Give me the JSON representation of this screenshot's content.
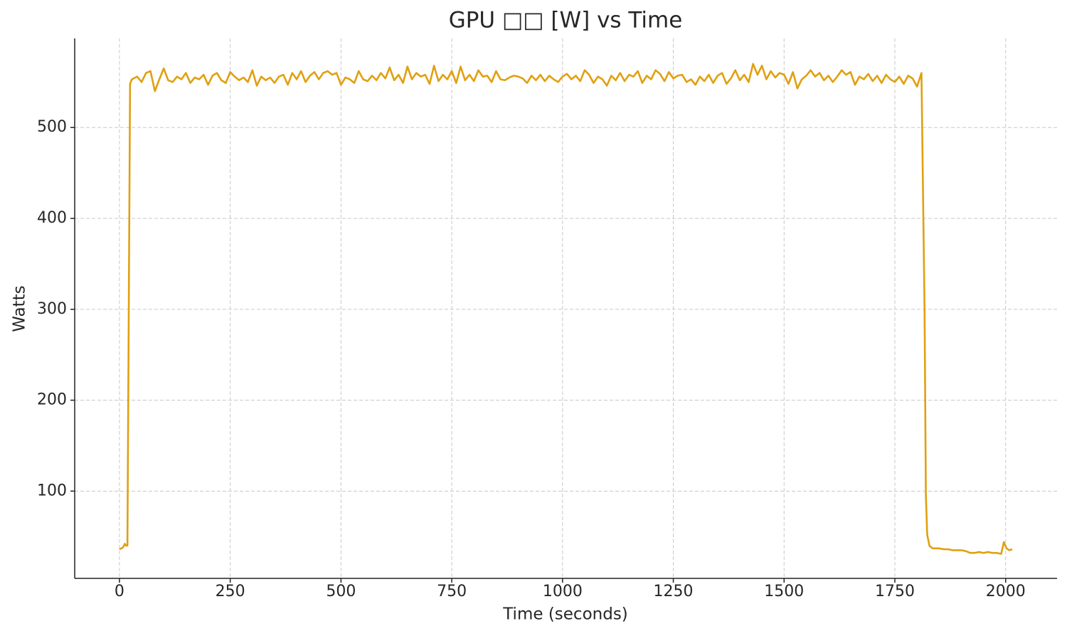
{
  "chart_data": {
    "type": "line",
    "title": "GPU □□ [W] vs Time",
    "xlabel": "Time (seconds)",
    "ylabel": "Watts",
    "xlim": [
      -101,
      2116
    ],
    "ylim": [
      4,
      598
    ],
    "xticks": [
      0,
      250,
      500,
      750,
      1000,
      1250,
      1500,
      1750,
      2000
    ],
    "yticks": [
      100,
      200,
      300,
      400,
      500
    ],
    "grid": true,
    "series": [
      {
        "color": "#e0a010",
        "x": [
          0,
          8,
          12,
          15,
          18,
          24,
          28,
          40,
          50,
          60,
          70,
          80,
          90,
          100,
          110,
          120,
          130,
          140,
          150,
          160,
          170,
          180,
          190,
          200,
          210,
          220,
          230,
          240,
          250,
          260,
          270,
          280,
          290,
          300,
          310,
          320,
          330,
          340,
          350,
          360,
          370,
          380,
          390,
          400,
          410,
          420,
          430,
          440,
          450,
          460,
          470,
          480,
          490,
          500,
          510,
          520,
          530,
          540,
          550,
          560,
          570,
          580,
          590,
          600,
          610,
          620,
          630,
          640,
          650,
          660,
          670,
          680,
          690,
          700,
          710,
          720,
          730,
          740,
          750,
          760,
          770,
          780,
          790,
          800,
          810,
          820,
          830,
          840,
          850,
          860,
          870,
          880,
          890,
          900,
          910,
          920,
          930,
          940,
          950,
          960,
          970,
          980,
          990,
          1000,
          1010,
          1020,
          1030,
          1040,
          1050,
          1060,
          1070,
          1080,
          1090,
          1100,
          1110,
          1120,
          1130,
          1140,
          1150,
          1160,
          1170,
          1180,
          1190,
          1200,
          1210,
          1220,
          1230,
          1240,
          1250,
          1260,
          1270,
          1280,
          1290,
          1300,
          1310,
          1320,
          1330,
          1340,
          1350,
          1360,
          1370,
          1380,
          1390,
          1400,
          1410,
          1420,
          1430,
          1440,
          1450,
          1460,
          1470,
          1480,
          1490,
          1500,
          1510,
          1520,
          1530,
          1540,
          1550,
          1560,
          1570,
          1580,
          1590,
          1600,
          1610,
          1620,
          1630,
          1640,
          1650,
          1660,
          1670,
          1680,
          1690,
          1700,
          1710,
          1720,
          1730,
          1740,
          1750,
          1760,
          1770,
          1780,
          1790,
          1800,
          1810,
          1817,
          1820,
          1823,
          1828,
          1835,
          1850,
          1860,
          1870,
          1880,
          1890,
          1900,
          1910,
          1920,
          1930,
          1940,
          1950,
          1960,
          1970,
          1980,
          1990,
          1996,
          2002,
          2008,
          2015
        ],
        "values": [
          36,
          38,
          42,
          40,
          40,
          548,
          553,
          556,
          550,
          560,
          562,
          540,
          553,
          565,
          552,
          550,
          556,
          553,
          560,
          549,
          555,
          553,
          558,
          547,
          557,
          560,
          552,
          549,
          561,
          556,
          552,
          555,
          550,
          563,
          546,
          556,
          552,
          555,
          549,
          556,
          558,
          547,
          560,
          553,
          562,
          550,
          557,
          561,
          553,
          560,
          562,
          558,
          560,
          547,
          555,
          553,
          549,
          562,
          553,
          551,
          557,
          552,
          560,
          554,
          566,
          552,
          558,
          549,
          567,
          553,
          560,
          556,
          558,
          548,
          568,
          551,
          558,
          553,
          562,
          549,
          567,
          552,
          558,
          551,
          563,
          556,
          557,
          550,
          562,
          553,
          552,
          555,
          557,
          556,
          554,
          549,
          557,
          552,
          558,
          551,
          557,
          553,
          550,
          556,
          559,
          553,
          557,
          551,
          563,
          558,
          549,
          556,
          553,
          546,
          557,
          552,
          560,
          551,
          558,
          556,
          562,
          549,
          557,
          553,
          563,
          559,
          551,
          561,
          554,
          557,
          558,
          550,
          553,
          547,
          556,
          551,
          558,
          549,
          557,
          560,
          548,
          554,
          563,
          552,
          558,
          550,
          570,
          558,
          568,
          553,
          562,
          555,
          560,
          558,
          548,
          561,
          543,
          553,
          557,
          563,
          556,
          560,
          552,
          557,
          550,
          556,
          563,
          558,
          561,
          547,
          556,
          553,
          559,
          551,
          557,
          549,
          558,
          553,
          550,
          556,
          548,
          557,
          554,
          545,
          560,
          300,
          95,
          52,
          40,
          37,
          37,
          36,
          36,
          35,
          35,
          35,
          34,
          32,
          32,
          33,
          32,
          33,
          32,
          32,
          31,
          44,
          37,
          35,
          36
        ]
      }
    ]
  }
}
